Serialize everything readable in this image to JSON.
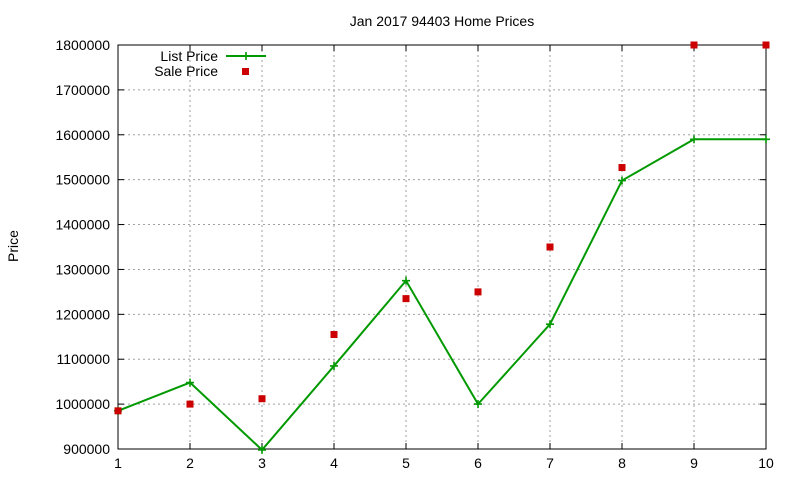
{
  "chart_data": {
    "type": "line",
    "title": "Jan 2017 94403 Home Prices",
    "xlabel": "",
    "ylabel": "Price",
    "x": [
      1,
      2,
      3,
      4,
      5,
      6,
      7,
      8,
      9,
      10
    ],
    "xlim": [
      1,
      10
    ],
    "ylim": [
      900000,
      1800000
    ],
    "xticks": [
      "1",
      "2",
      "3",
      "4",
      "5",
      "6",
      "7",
      "8",
      "9",
      "10"
    ],
    "yticks": [
      "900000",
      "1000000",
      "1100000",
      "1200000",
      "1300000",
      "1400000",
      "1500000",
      "1600000",
      "1700000",
      "1800000"
    ],
    "grid": true,
    "legend_position": "top-left",
    "series": [
      {
        "name": "List Price",
        "type": "line",
        "marker": "plus",
        "color": "#009900",
        "values": [
          985000,
          1048000,
          898000,
          1085000,
          1275000,
          1000000,
          1178000,
          1498000,
          1590000,
          1590000
        ]
      },
      {
        "name": "Sale Price",
        "type": "scatter",
        "marker": "square",
        "color": "#cc0000",
        "values": [
          985000,
          1000000,
          1012000,
          1155000,
          1235000,
          1250000,
          1350000,
          1527000,
          1800000,
          1800000
        ]
      }
    ]
  }
}
